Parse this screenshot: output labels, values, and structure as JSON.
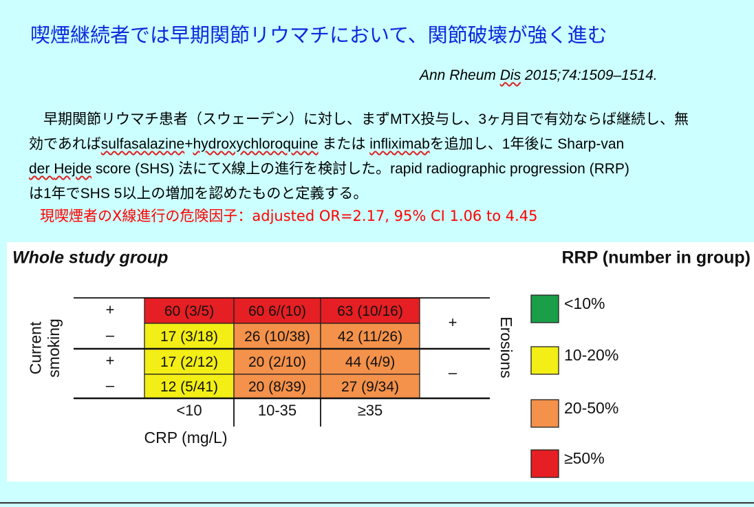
{
  "slide": {
    "title": "喫煙継続者では早期関節リウマチにおいて、関節破壊が強く進む",
    "citation": {
      "journal_pre": "Ann Rheum ",
      "journal_marked": "Dis",
      "details": " 2015;74:1509–1514."
    },
    "body": {
      "line1": "早期関節リウマチ患者（スウェーデン）に対し、まずMTX投与し、3ヶ月目で有効ならば継続し、無",
      "line2": {
        "p1": "効であれば",
        "marked1": "sulfasalazine",
        "p2": "+",
        "marked2": "hydroxychloroquine",
        "p3": " または ",
        "marked3": "infliximab",
        "p4": "を追加し、1年後に Sharp-van"
      },
      "line3": {
        "p1": "der ",
        "marked1": "Hejde",
        "p2": " score (SHS) 法にてX線上の進行を検討した。rapid radiographic progression (RRP)"
      },
      "line4": "は1年でSHS 5以上の増加を認めたものと定義する。"
    },
    "finding": "現喫煙者のX線進行の危険因子：adjusted OR=2.17, 95% CI 1.06 to 4.45"
  },
  "chart_data": {
    "type": "heatmap",
    "title": "Whole study group",
    "legend_title": "RRP (number in group)",
    "columns": [
      "<10",
      "10-35",
      "≥35"
    ],
    "xlabel": "CRP (mg/L)",
    "ylabel_line1": "Current",
    "ylabel_line2": "smoking",
    "right_label": "Erosions",
    "right_groups": [
      "+",
      "–"
    ],
    "rows": [
      {
        "smoking": "+",
        "erosions": "+",
        "pct": [
          60,
          60,
          63
        ],
        "labels": [
          "60 (3/5)",
          "60 6/(10)",
          "63 (10/16)"
        ]
      },
      {
        "smoking": "–",
        "erosions": "+",
        "pct": [
          17,
          26,
          42
        ],
        "labels": [
          "17 (3/18)",
          "26 (10/38)",
          "42 (11/26)"
        ]
      },
      {
        "smoking": "+",
        "erosions": "–",
        "pct": [
          17,
          20,
          44
        ],
        "labels": [
          "17 (2/12)",
          "20 (2/10)",
          "44 (4/9)"
        ]
      },
      {
        "smoking": "–",
        "erosions": "–",
        "pct": [
          12,
          20,
          27
        ],
        "labels": [
          "12 (5/41)",
          "20 (8/39)",
          "27 (9/34)"
        ]
      }
    ],
    "legend": [
      {
        "label": "<10%",
        "color": "#1a9e48"
      },
      {
        "label": "10-20%",
        "color": "#f2ee16"
      },
      {
        "label": "20-50%",
        "color": "#f4914a"
      },
      {
        "label": "≥50%",
        "color": "#e51f23"
      }
    ]
  }
}
